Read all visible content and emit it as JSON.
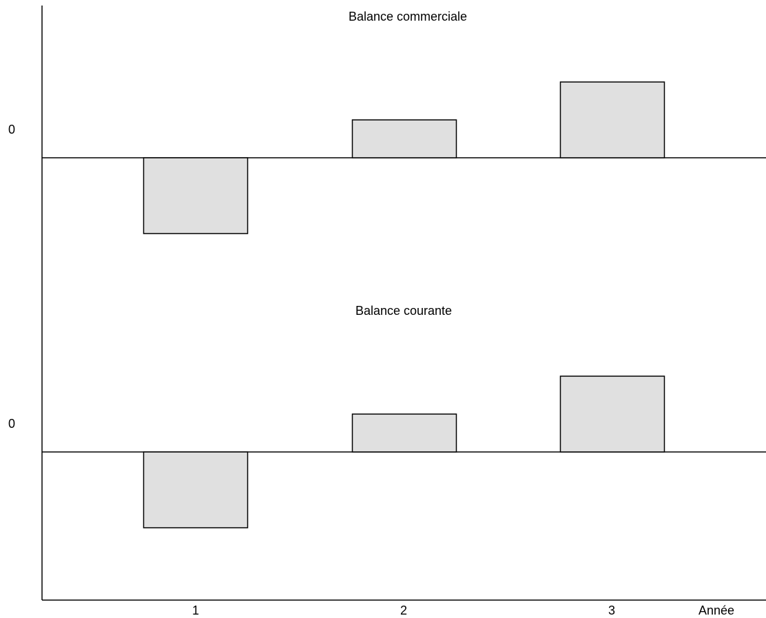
{
  "chart_data": {
    "type": "bar",
    "xlabel": "Année",
    "categories": [
      "1",
      "2",
      "3"
    ],
    "bar_fill": "#e0e0e0",
    "panels": [
      {
        "title": "Balance commerciale",
        "zero_label": "0",
        "values": [
          -2,
          1,
          2
        ]
      },
      {
        "title": "Balance courante",
        "zero_label": "0",
        "values": [
          -2,
          1,
          2
        ]
      }
    ]
  }
}
